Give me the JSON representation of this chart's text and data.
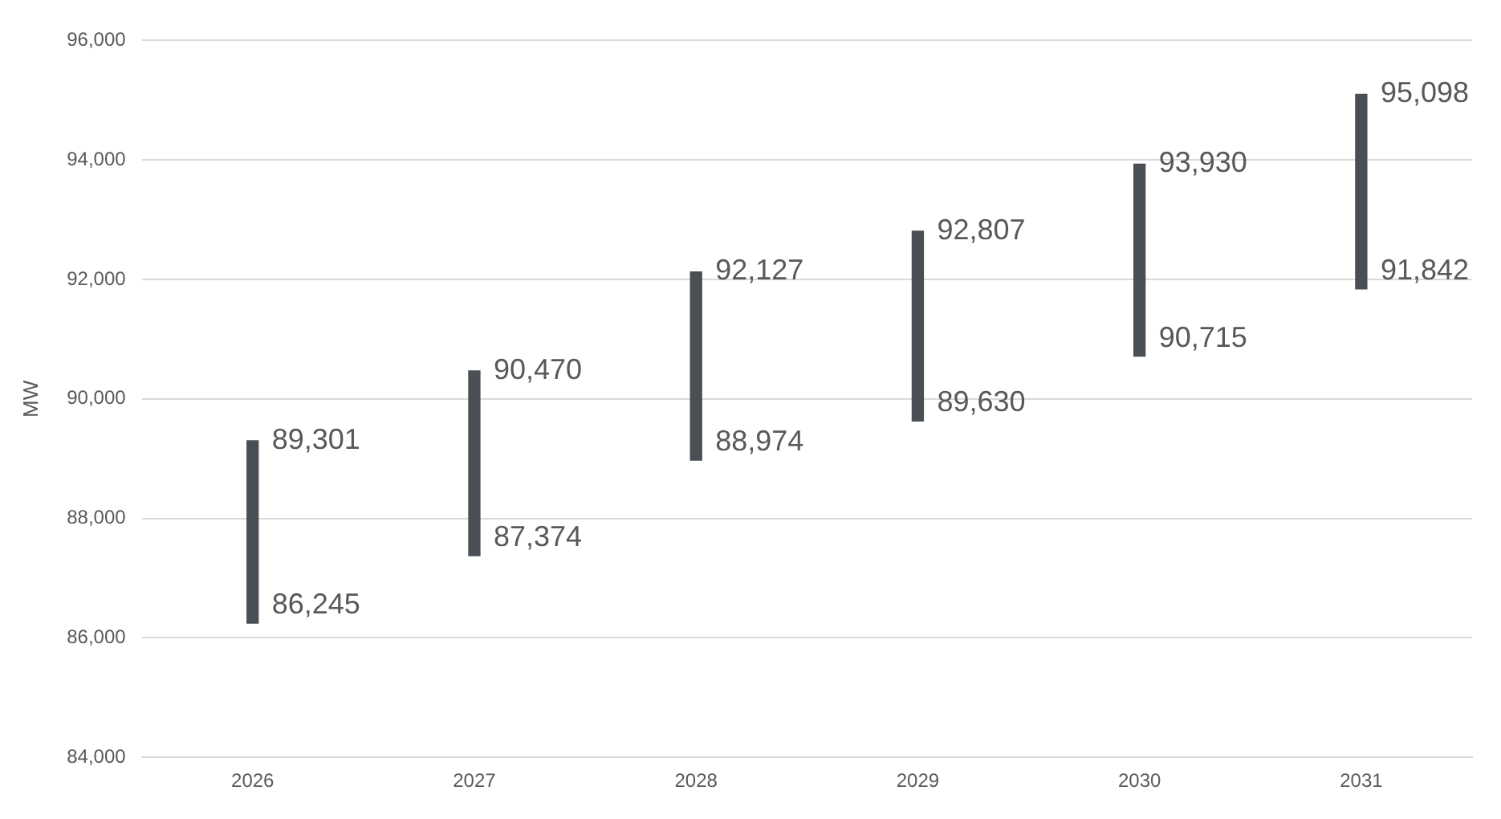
{
  "chart_data": {
    "type": "bar",
    "ylabel": "MW",
    "categories": [
      "2026",
      "2027",
      "2028",
      "2029",
      "2030",
      "2031"
    ],
    "base": [
      86245,
      87374,
      88974,
      89630,
      90715,
      91842
    ],
    "values": [
      3056,
      3096,
      3153,
      3177,
      3215,
      3256
    ],
    "color": "#4a4f55",
    "ylim": [
      84000,
      96000
    ],
    "yticks": [
      {
        "value": 84000,
        "label": "84,000"
      },
      {
        "value": 86000,
        "label": "86,000"
      },
      {
        "value": 88000,
        "label": "88,000"
      },
      {
        "value": 90000,
        "label": "90,000"
      },
      {
        "value": 92000,
        "label": "92,000"
      },
      {
        "value": 94000,
        "label": "94,000"
      },
      {
        "value": 96000,
        "label": "96,000"
      }
    ],
    "grid": "y",
    "annotations": [
      {
        "text": "89,301",
        "x": "2026",
        "y": 89301
      },
      {
        "text": "86,245",
        "x": "2026",
        "y": 86245
      },
      {
        "text": "90,470",
        "x": "2027",
        "y": 90470
      },
      {
        "text": "87,374",
        "x": "2027",
        "y": 87374
      },
      {
        "text": "92,127",
        "x": "2028",
        "y": 92127
      },
      {
        "text": "88,974",
        "x": "2028",
        "y": 88974
      },
      {
        "text": "92,807",
        "x": "2029",
        "y": 92807
      },
      {
        "text": "89,630",
        "x": "2029",
        "y": 89630
      },
      {
        "text": "93,930",
        "x": "2030",
        "y": 93930
      },
      {
        "text": "90,715",
        "x": "2030",
        "y": 90715
      },
      {
        "text": "95,098",
        "x": "2031",
        "y": 95098
      },
      {
        "text": "91,842",
        "x": "2031",
        "y": 91842
      }
    ]
  }
}
